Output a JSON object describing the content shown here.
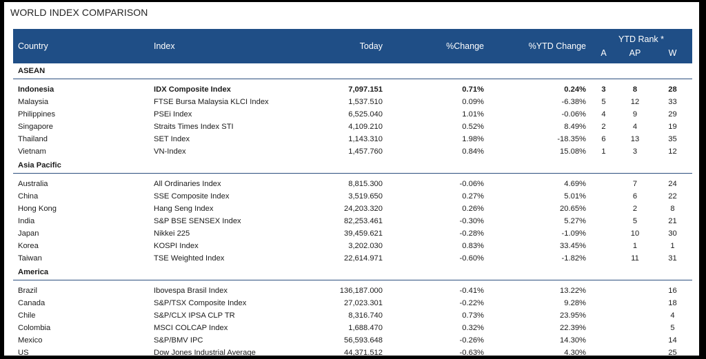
{
  "title": "WORLD INDEX COMPARISON",
  "headers": {
    "country": "Country",
    "index": "Index",
    "today": "Today",
    "change": "%Change",
    "ytd_change": "%YTD Change",
    "ytd_rank": "YTD Rank *",
    "rank_a": "A",
    "rank_ap": "AP",
    "rank_w": "W"
  },
  "sections": [
    {
      "name": "ASEAN",
      "rows": [
        {
          "country": "Indonesia",
          "index": "IDX Composite Index",
          "today": "7,097.151",
          "change": "0.71%",
          "ytd": "0.24%",
          "a": "3",
          "ap": "8",
          "w": "28",
          "bold": true
        },
        {
          "country": "Malaysia",
          "index": "FTSE Bursa Malaysia KLCI Index",
          "today": "1,537.510",
          "change": "0.09%",
          "ytd": "-6.38%",
          "a": "5",
          "ap": "12",
          "w": "33"
        },
        {
          "country": "Philippines",
          "index": "PSEi Index",
          "today": "6,525.040",
          "change": "1.01%",
          "ytd": "-0.06%",
          "a": "4",
          "ap": "9",
          "w": "29"
        },
        {
          "country": "Singapore",
          "index": "Straits Times Index STI",
          "today": "4,109.210",
          "change": "0.52%",
          "ytd": "8.49%",
          "a": "2",
          "ap": "4",
          "w": "19"
        },
        {
          "country": "Thailand",
          "index": "SET Index",
          "today": "1,143.310",
          "change": "1.98%",
          "ytd": "-18.35%",
          "a": "6",
          "ap": "13",
          "w": "35"
        },
        {
          "country": "Vietnam",
          "index": "VN-Index",
          "today": "1,457.760",
          "change": "0.84%",
          "ytd": "15.08%",
          "a": "1",
          "ap": "3",
          "w": "12"
        }
      ]
    },
    {
      "name": "Asia Pacific",
      "rows": [
        {
          "country": "Australia",
          "index": "All Ordinaries Index",
          "today": "8,815.300",
          "change": "-0.06%",
          "ytd": "4.69%",
          "a": "",
          "ap": "7",
          "w": "24"
        },
        {
          "country": "China",
          "index": "SSE Composite Index",
          "today": "3,519.650",
          "change": "0.27%",
          "ytd": "5.01%",
          "a": "",
          "ap": "6",
          "w": "22"
        },
        {
          "country": "Hong Kong",
          "index": "Hang Seng Index",
          "today": "24,203.320",
          "change": "0.26%",
          "ytd": "20.65%",
          "a": "",
          "ap": "2",
          "w": "8"
        },
        {
          "country": "India",
          "index": "S&P BSE SENSEX Index",
          "today": "82,253.461",
          "change": "-0.30%",
          "ytd": "5.27%",
          "a": "",
          "ap": "5",
          "w": "21"
        },
        {
          "country": "Japan",
          "index": "Nikkei 225",
          "today": "39,459.621",
          "change": "-0.28%",
          "ytd": "-1.09%",
          "a": "",
          "ap": "10",
          "w": "30"
        },
        {
          "country": "Korea",
          "index": "KOSPI Index",
          "today": "3,202.030",
          "change": "0.83%",
          "ytd": "33.45%",
          "a": "",
          "ap": "1",
          "w": "1"
        },
        {
          "country": "Taiwan",
          "index": "TSE Weighted Index",
          "today": "22,614.971",
          "change": "-0.60%",
          "ytd": "-1.82%",
          "a": "",
          "ap": "11",
          "w": "31"
        }
      ]
    },
    {
      "name": "America",
      "rows": [
        {
          "country": "Brazil",
          "index": "Ibovespa Brasil Index",
          "today": "136,187.000",
          "change": "-0.41%",
          "ytd": "13.22%",
          "a": "",
          "ap": "",
          "w": "16"
        },
        {
          "country": "Canada",
          "index": "S&P/TSX Composite Index",
          "today": "27,023.301",
          "change": "-0.22%",
          "ytd": "9.28%",
          "a": "",
          "ap": "",
          "w": "18"
        },
        {
          "country": "Chile",
          "index": "S&P/CLX IPSA CLP TR",
          "today": "8,316.740",
          "change": "0.73%",
          "ytd": "23.95%",
          "a": "",
          "ap": "",
          "w": "4"
        },
        {
          "country": "Colombia",
          "index": "MSCI COLCAP Index",
          "today": "1,688.470",
          "change": "0.32%",
          "ytd": "22.39%",
          "a": "",
          "ap": "",
          "w": "5"
        },
        {
          "country": "Mexico",
          "index": "S&P/BMV IPC",
          "today": "56,593.648",
          "change": "-0.26%",
          "ytd": "14.30%",
          "a": "",
          "ap": "",
          "w": "14"
        },
        {
          "country": "US",
          "index": "Dow Jones Industrial Average",
          "today": "44,371.512",
          "change": "-0.63%",
          "ytd": "4.30%",
          "a": "",
          "ap": "",
          "w": "25"
        }
      ]
    }
  ]
}
